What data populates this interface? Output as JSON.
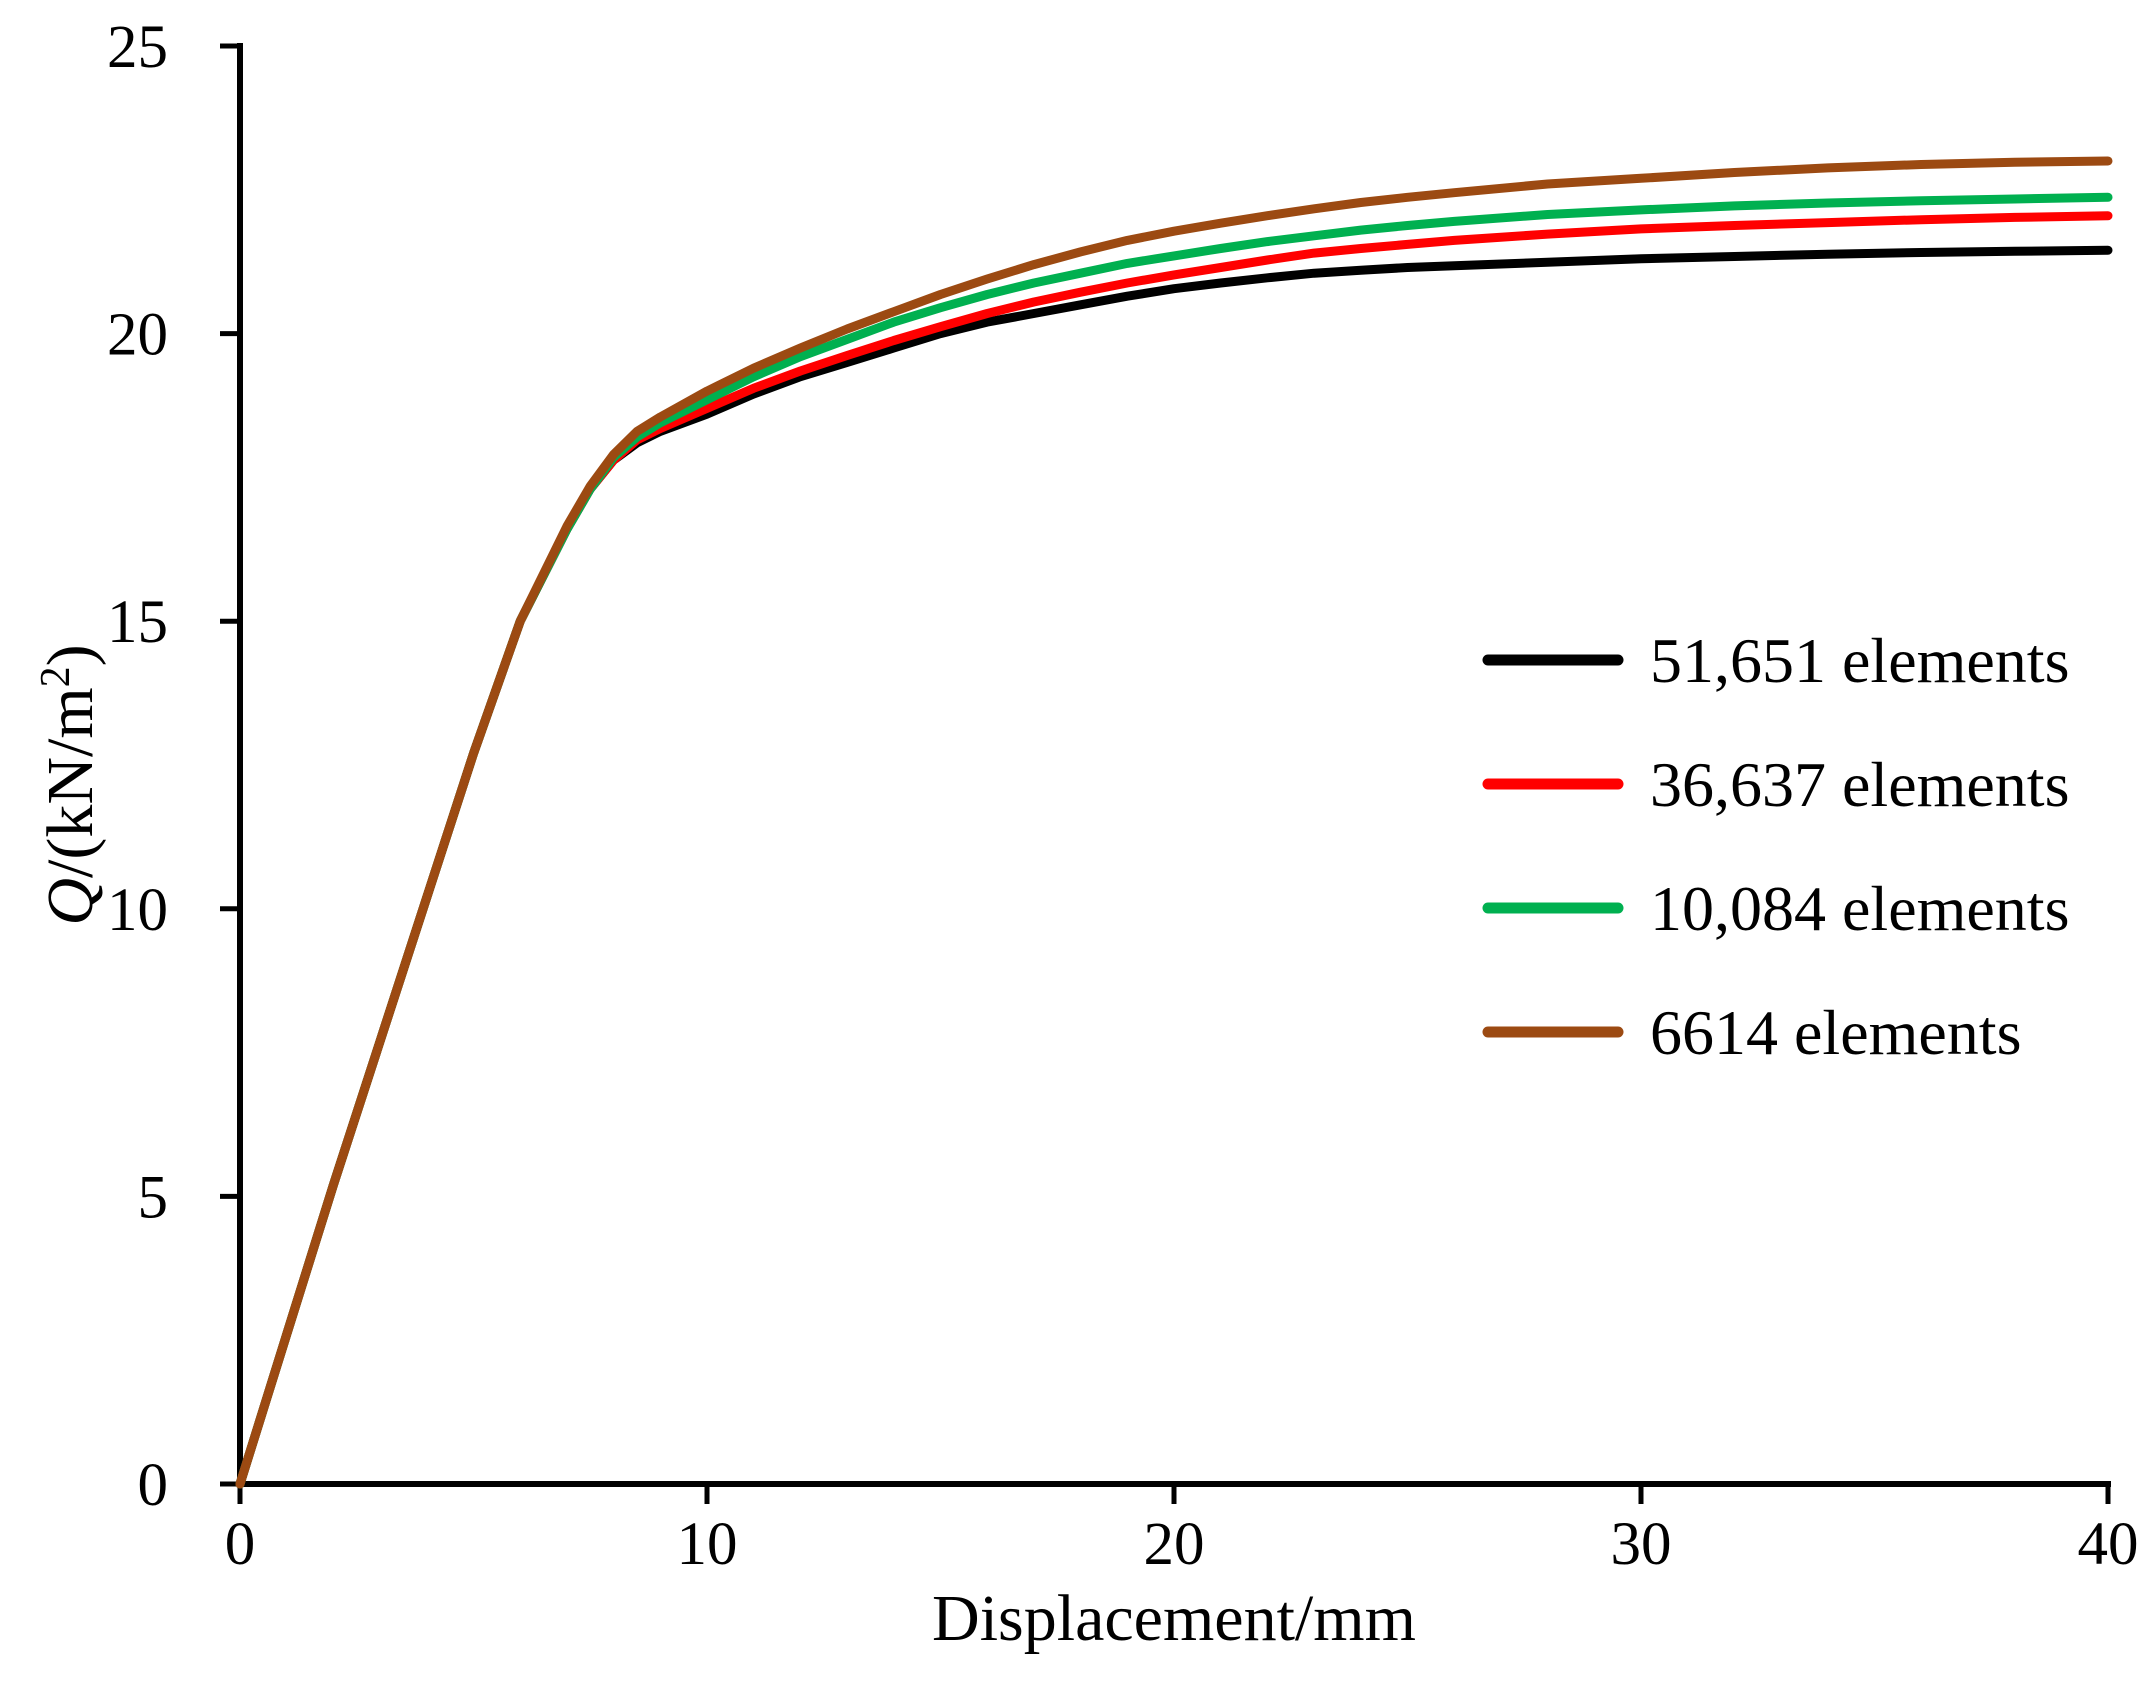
{
  "chart_data": {
    "type": "line",
    "title": "",
    "xlabel": "Displacement/mm",
    "ylabel": {
      "symbol": "Q",
      "unit_prefix": "/(kN/m",
      "superscript": "2",
      "unit_suffix": ")"
    },
    "xlim": [
      0,
      40
    ],
    "ylim": [
      0,
      25
    ],
    "xticks": [
      0,
      10,
      20,
      30,
      40
    ],
    "yticks": [
      0,
      5,
      10,
      15,
      20,
      25
    ],
    "grid": false,
    "legend_position": "right-center",
    "series": [
      {
        "name": "51,651 elements",
        "color": "#000000",
        "x": [
          0,
          1,
          2,
          3,
          4,
          5,
          6,
          7,
          7.5,
          8,
          8.5,
          9,
          10,
          11,
          12,
          13,
          14,
          15,
          16,
          17,
          18,
          19,
          20,
          21,
          22,
          23,
          24,
          25,
          26,
          28,
          30,
          32,
          34,
          36,
          38,
          40
        ],
        "values": [
          0,
          2.6,
          5.2,
          7.7,
          10.2,
          12.7,
          15.0,
          16.6,
          17.3,
          17.8,
          18.1,
          18.3,
          18.6,
          18.95,
          19.25,
          19.5,
          19.75,
          20.0,
          20.2,
          20.35,
          20.5,
          20.65,
          20.78,
          20.88,
          20.97,
          21.05,
          21.1,
          21.15,
          21.18,
          21.24,
          21.3,
          21.34,
          21.38,
          21.41,
          21.43,
          21.45
        ]
      },
      {
        "name": "36,637 elements",
        "color": "#ff0000",
        "x": [
          0,
          1,
          2,
          3,
          4,
          5,
          6,
          7,
          7.5,
          8,
          8.5,
          9,
          10,
          11,
          12,
          13,
          14,
          15,
          16,
          17,
          18,
          19,
          20,
          21,
          22,
          23,
          24,
          25,
          26,
          28,
          30,
          32,
          34,
          36,
          38,
          40
        ],
        "values": [
          0,
          2.6,
          5.2,
          7.7,
          10.2,
          12.7,
          15.0,
          16.6,
          17.3,
          17.8,
          18.15,
          18.35,
          18.7,
          19.05,
          19.35,
          19.62,
          19.88,
          20.12,
          20.35,
          20.55,
          20.72,
          20.88,
          21.02,
          21.15,
          21.28,
          21.4,
          21.48,
          21.55,
          21.62,
          21.73,
          21.82,
          21.88,
          21.93,
          21.98,
          22.02,
          22.05
        ]
      },
      {
        "name": "10,084 elements",
        "color": "#00b050",
        "x": [
          0,
          1,
          2,
          3,
          4,
          5,
          6,
          7,
          7.5,
          8,
          8.5,
          9,
          10,
          11,
          12,
          13,
          14,
          15,
          16,
          17,
          18,
          19,
          20,
          21,
          22,
          23,
          24,
          25,
          26,
          28,
          30,
          32,
          34,
          36,
          38,
          40
        ],
        "values": [
          0,
          2.6,
          5.2,
          7.7,
          10.2,
          12.7,
          15.0,
          16.6,
          17.3,
          17.85,
          18.2,
          18.45,
          18.85,
          19.25,
          19.6,
          19.9,
          20.2,
          20.45,
          20.68,
          20.88,
          21.05,
          21.22,
          21.35,
          21.48,
          21.6,
          21.7,
          21.8,
          21.88,
          21.95,
          22.07,
          22.15,
          22.22,
          22.27,
          22.31,
          22.34,
          22.37
        ]
      },
      {
        "name": "6614 elements",
        "color": "#9c4a12",
        "x": [
          0,
          1,
          2,
          3,
          4,
          5,
          6,
          7,
          7.5,
          8,
          8.5,
          9,
          10,
          11,
          12,
          13,
          14,
          15,
          16,
          17,
          18,
          19,
          20,
          21,
          22,
          23,
          24,
          25,
          26,
          28,
          30,
          32,
          34,
          36,
          38,
          40
        ],
        "values": [
          0,
          2.6,
          5.2,
          7.7,
          10.2,
          12.7,
          15.0,
          16.65,
          17.35,
          17.9,
          18.3,
          18.55,
          19.0,
          19.4,
          19.75,
          20.08,
          20.38,
          20.68,
          20.95,
          21.2,
          21.42,
          21.62,
          21.78,
          21.92,
          22.05,
          22.17,
          22.28,
          22.37,
          22.45,
          22.6,
          22.7,
          22.8,
          22.88,
          22.94,
          22.98,
          23.0
        ]
      }
    ]
  }
}
